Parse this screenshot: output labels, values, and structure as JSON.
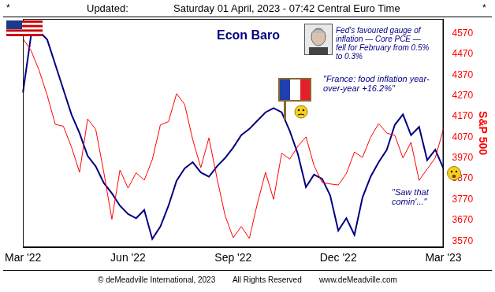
{
  "chart_data": {
    "type": "line",
    "title": "Econ Baro",
    "y_label": "S&P 500",
    "header": {
      "left": "*",
      "label": "Updated:",
      "timestamp": "Saturday 01 April, 2023 - 07:42 Central Euro Time",
      "right": "*"
    },
    "footer": [
      "© deMeadville International, 2023",
      "All Rights Reserved",
      "www.deMeadville.com"
    ],
    "annotations": [
      "Fed's favoured gauge of inflation — Core PCE — fell for February from 0.5% to 0.3%",
      "\"France:  food inflation year-over-year +16.2%\"",
      "\"Saw that comin'...\""
    ],
    "categories": [
      "Mar '22",
      null,
      null,
      null,
      null,
      null,
      null,
      null,
      null,
      null,
      null,
      null,
      null,
      "Jun '22",
      null,
      null,
      null,
      null,
      null,
      null,
      null,
      null,
      null,
      null,
      null,
      null,
      "Sep '22",
      null,
      null,
      null,
      null,
      null,
      null,
      null,
      null,
      null,
      null,
      null,
      null,
      "Dec '22",
      null,
      null,
      null,
      null,
      null,
      null,
      null,
      null,
      null,
      null,
      null,
      null,
      "Mar '23"
    ],
    "series": [
      {
        "name": "S&P 500",
        "color": "#ff0000",
        "values": [
          4545,
          4488,
          4392,
          4272,
          4132,
          4123,
          4023,
          3901,
          4158,
          4108,
          3901,
          3675,
          3912,
          3825,
          3899,
          3863,
          3962,
          4130,
          4145,
          4280,
          4228,
          4058,
          3924,
          4067,
          3873,
          3693,
          3586,
          3640,
          3583,
          3752,
          3901,
          3771,
          3993,
          3965,
          4026,
          4072,
          3934,
          3852,
          3845,
          3840,
          3895,
          3999,
          3973,
          4070,
          4136,
          4090,
          4079,
          3970,
          4046,
          3862,
          3917,
          3971,
          4109
        ]
      },
      {
        "name": "Econ Baro",
        "color": "#000080",
        "values": [
          4285,
          4560,
          4580,
          4540,
          4420,
          4300,
          4180,
          4090,
          3980,
          3930,
          3850,
          3800,
          3740,
          3700,
          3680,
          3720,
          3580,
          3640,
          3740,
          3860,
          3920,
          3950,
          3900,
          3880,
          3930,
          3970,
          4020,
          4080,
          4110,
          4150,
          4190,
          4210,
          4190,
          4100,
          3990,
          3830,
          3890,
          3870,
          3790,
          3620,
          3680,
          3600,
          3780,
          3880,
          3950,
          4010,
          4130,
          4180,
          4080,
          4120,
          3960,
          4010,
          3920
        ]
      }
    ],
    "ylim": [
      3540,
      4640
    ],
    "yticks": [
      3570,
      3670,
      3770,
      3870,
      3970,
      4070,
      4170,
      4270,
      4370,
      4470,
      4570
    ],
    "grid": false
  }
}
